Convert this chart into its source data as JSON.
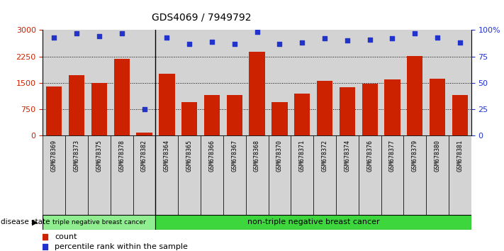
{
  "title": "GDS4069 / 7949792",
  "samples": [
    "GSM678369",
    "GSM678373",
    "GSM678375",
    "GSM678378",
    "GSM678382",
    "GSM678364",
    "GSM678365",
    "GSM678366",
    "GSM678367",
    "GSM678368",
    "GSM678370",
    "GSM678371",
    "GSM678372",
    "GSM678374",
    "GSM678376",
    "GSM678377",
    "GSM678379",
    "GSM678380",
    "GSM678381"
  ],
  "counts": [
    1400,
    1720,
    1500,
    2180,
    80,
    1750,
    950,
    1150,
    1150,
    2380,
    950,
    1200,
    1560,
    1380,
    1480,
    1600,
    2260,
    1620,
    1150
  ],
  "percentiles": [
    93,
    97,
    94,
    97,
    25,
    93,
    87,
    89,
    87,
    98,
    87,
    88,
    92,
    90,
    91,
    92,
    97,
    93,
    88
  ],
  "bar_color": "#cc2200",
  "dot_color": "#2233cc",
  "ylim_left": [
    0,
    3000
  ],
  "ylim_right": [
    0,
    100
  ],
  "yticks_left": [
    0,
    750,
    1500,
    2250,
    3000
  ],
  "yticks_right": [
    0,
    25,
    50,
    75,
    100
  ],
  "ytick_labels_right": [
    "0",
    "25",
    "50",
    "75",
    "100%"
  ],
  "grid_values": [
    750,
    1500,
    2250
  ],
  "triple_neg_count": 5,
  "group1_label": "triple negative breast cancer",
  "group2_label": "non-triple negative breast cancer",
  "disease_state_label": "disease state",
  "legend_count_label": "count",
  "legend_pct_label": "percentile rank within the sample",
  "bg_color": "#ffffff",
  "cell_bg_color": "#d3d3d3",
  "group1_color": "#90EE90",
  "group2_color": "#3DD63D",
  "group1_border": "#000000",
  "group2_border": "#000000"
}
